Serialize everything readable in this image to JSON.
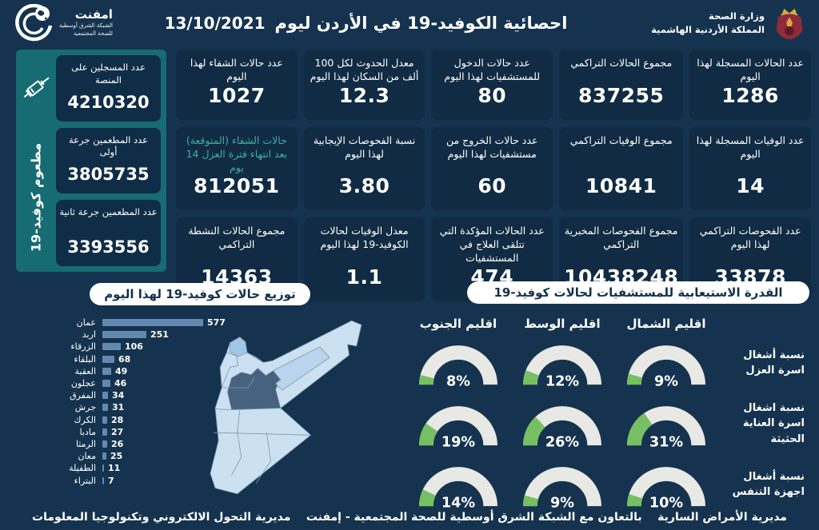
{
  "header": {
    "logo": {
      "name": "امفنت",
      "line1": "الشبكة الشرق أوسطية",
      "line2": "للصحة المجتمعية"
    },
    "title": "احصائية الكوفيد-19 في الأردن ليوم",
    "date": "13/10/2021",
    "ministry": {
      "line1": "وزارة الصحة",
      "line2": "المملكة الأردنية الهاشمية"
    }
  },
  "sidebar": {
    "vertical_label": "مطعوم كوفيد-19",
    "cards": [
      {
        "label": "عدد المسجلين على المنصة",
        "value": "4210320"
      },
      {
        "label": "عدد المطعمين جرعة أولى",
        "value": "3805735"
      },
      {
        "label": "عدد المطعمين جرعة ثانية",
        "value": "3393556"
      }
    ]
  },
  "stats": {
    "cards": [
      {
        "label": "عدد حالات الشفاء لهذا اليوم",
        "value": "1027"
      },
      {
        "label": "معدل الحدوث لكل 100 ألف من السكان لهذا اليوم",
        "value": "12.3"
      },
      {
        "label": "عدد حالات الدخول للمستشفيات لهذا اليوم",
        "value": "80"
      },
      {
        "label": "مجموع الحالات التراكمي",
        "value": "837255"
      },
      {
        "label": "عدد الحالات المسجلة لهذا اليوم",
        "value": "1286"
      },
      {
        "label": "حالات الشفاء (المتوقعة) بعد انتهاء فترة العزل 14 يوم",
        "value": "812051",
        "accent": true
      },
      {
        "label": "نسبة الفحوصات الإيجابية لهذا اليوم",
        "value": "3.80"
      },
      {
        "label": "عدد حالات الخروج من مستشفيات لهذا اليوم",
        "value": "60"
      },
      {
        "label": "مجموع الوفيات التراكمي",
        "value": "10841"
      },
      {
        "label": "عدد الوفيات المسجلة لهذا اليوم",
        "value": "14"
      },
      {
        "label": "مجموع الحالات النشطة التراكمي",
        "value": "14363"
      },
      {
        "label": "معدل الوفيات لحالات الكوفيد-19 لهذا اليوم",
        "value": "1.1"
      },
      {
        "label": "عدد الحالات المؤكدة التي تتلقى العلاج في المستشفيات",
        "value": "474"
      },
      {
        "label": "مجموع الفحوصات المخبرية التراكمي",
        "value": "10438248"
      },
      {
        "label": "عدد الفحوصات التراكمي لهذا اليوم",
        "value": "33878"
      }
    ]
  },
  "chart_data": [
    {
      "type": "bar",
      "title": "توزيع حالات كوفيد-19 لهذا اليوم",
      "categories": [
        "عمان",
        "اربد",
        "الزرقاء",
        "البلقاء",
        "العقبة",
        "عجلون",
        "المفرق",
        "جرش",
        "الكرك",
        "مادبا",
        "الرمثا",
        "معان",
        "الطفيلة",
        "البتراء"
      ],
      "values": [
        577,
        251,
        106,
        68,
        49,
        46,
        34,
        31,
        28,
        27,
        26,
        25,
        11,
        7
      ],
      "xlim": [
        0,
        600
      ],
      "orientation": "horizontal",
      "bar_color": "#6389B0"
    },
    {
      "type": "gauge-grid",
      "title": "القدرة الاستيعابية للمستشفيات لحالات كوفيد-19",
      "regions": [
        "اقليم الجنوب",
        "اقليم الوسط",
        "اقليم الشمال"
      ],
      "rows": [
        {
          "label": "نسبة أشغال اسرة العزل",
          "values": [
            8,
            12,
            9
          ]
        },
        {
          "label": "نسبة اشغال اسرة العناية الحثيثة",
          "values": [
            19,
            26,
            31
          ]
        },
        {
          "label": "نسبة أشغال اجهزة التنفس",
          "values": [
            14,
            9,
            10
          ]
        }
      ],
      "range": [
        0,
        100
      ],
      "track_color": "#E8E8E4",
      "fill_color": "#76BF62"
    }
  ],
  "footer": {
    "right": "مديرية الأمراض السارية",
    "center": "بالتعاون مع الشبكة الشرق أوسطية للصحة المجتمعية - إمفنت",
    "left": "مديرية التحول الالكتروني وتكنولوجيا المعلومات"
  },
  "colors": {
    "background": "#15334E",
    "card": "#102B43",
    "sidebar": "#176B72",
    "accent_teal": "#41AFA8",
    "bar": "#6389B0",
    "gauge_green": "#76BF62",
    "gauge_track": "#E8E8E4",
    "map_light": "#CBE0F1",
    "map_amman": "#46627E",
    "map_irbid": "#A2C6E8"
  }
}
